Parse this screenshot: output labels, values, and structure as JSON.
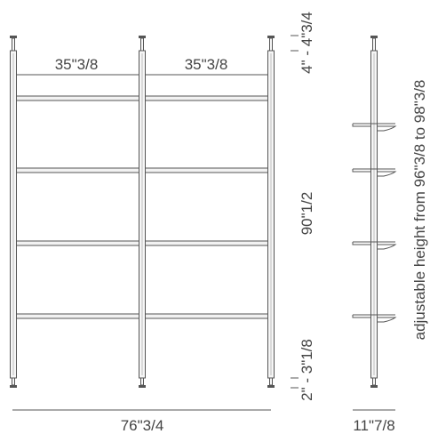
{
  "dimensions": {
    "bay_width_left": "35\"3/8",
    "bay_width_right": "35\"3/8",
    "top_gap": "4\" - 4\"3/4",
    "height_main": "90\"1/2",
    "bottom_gap": "2\" - 3\"1/8",
    "total_width": "76\"3/4",
    "depth": "11\"7/8",
    "adjustable_height": "adjustable height from 96\"3/8 to 98\"3/8"
  },
  "colors": {
    "line": "#555555",
    "text": "#444444"
  }
}
